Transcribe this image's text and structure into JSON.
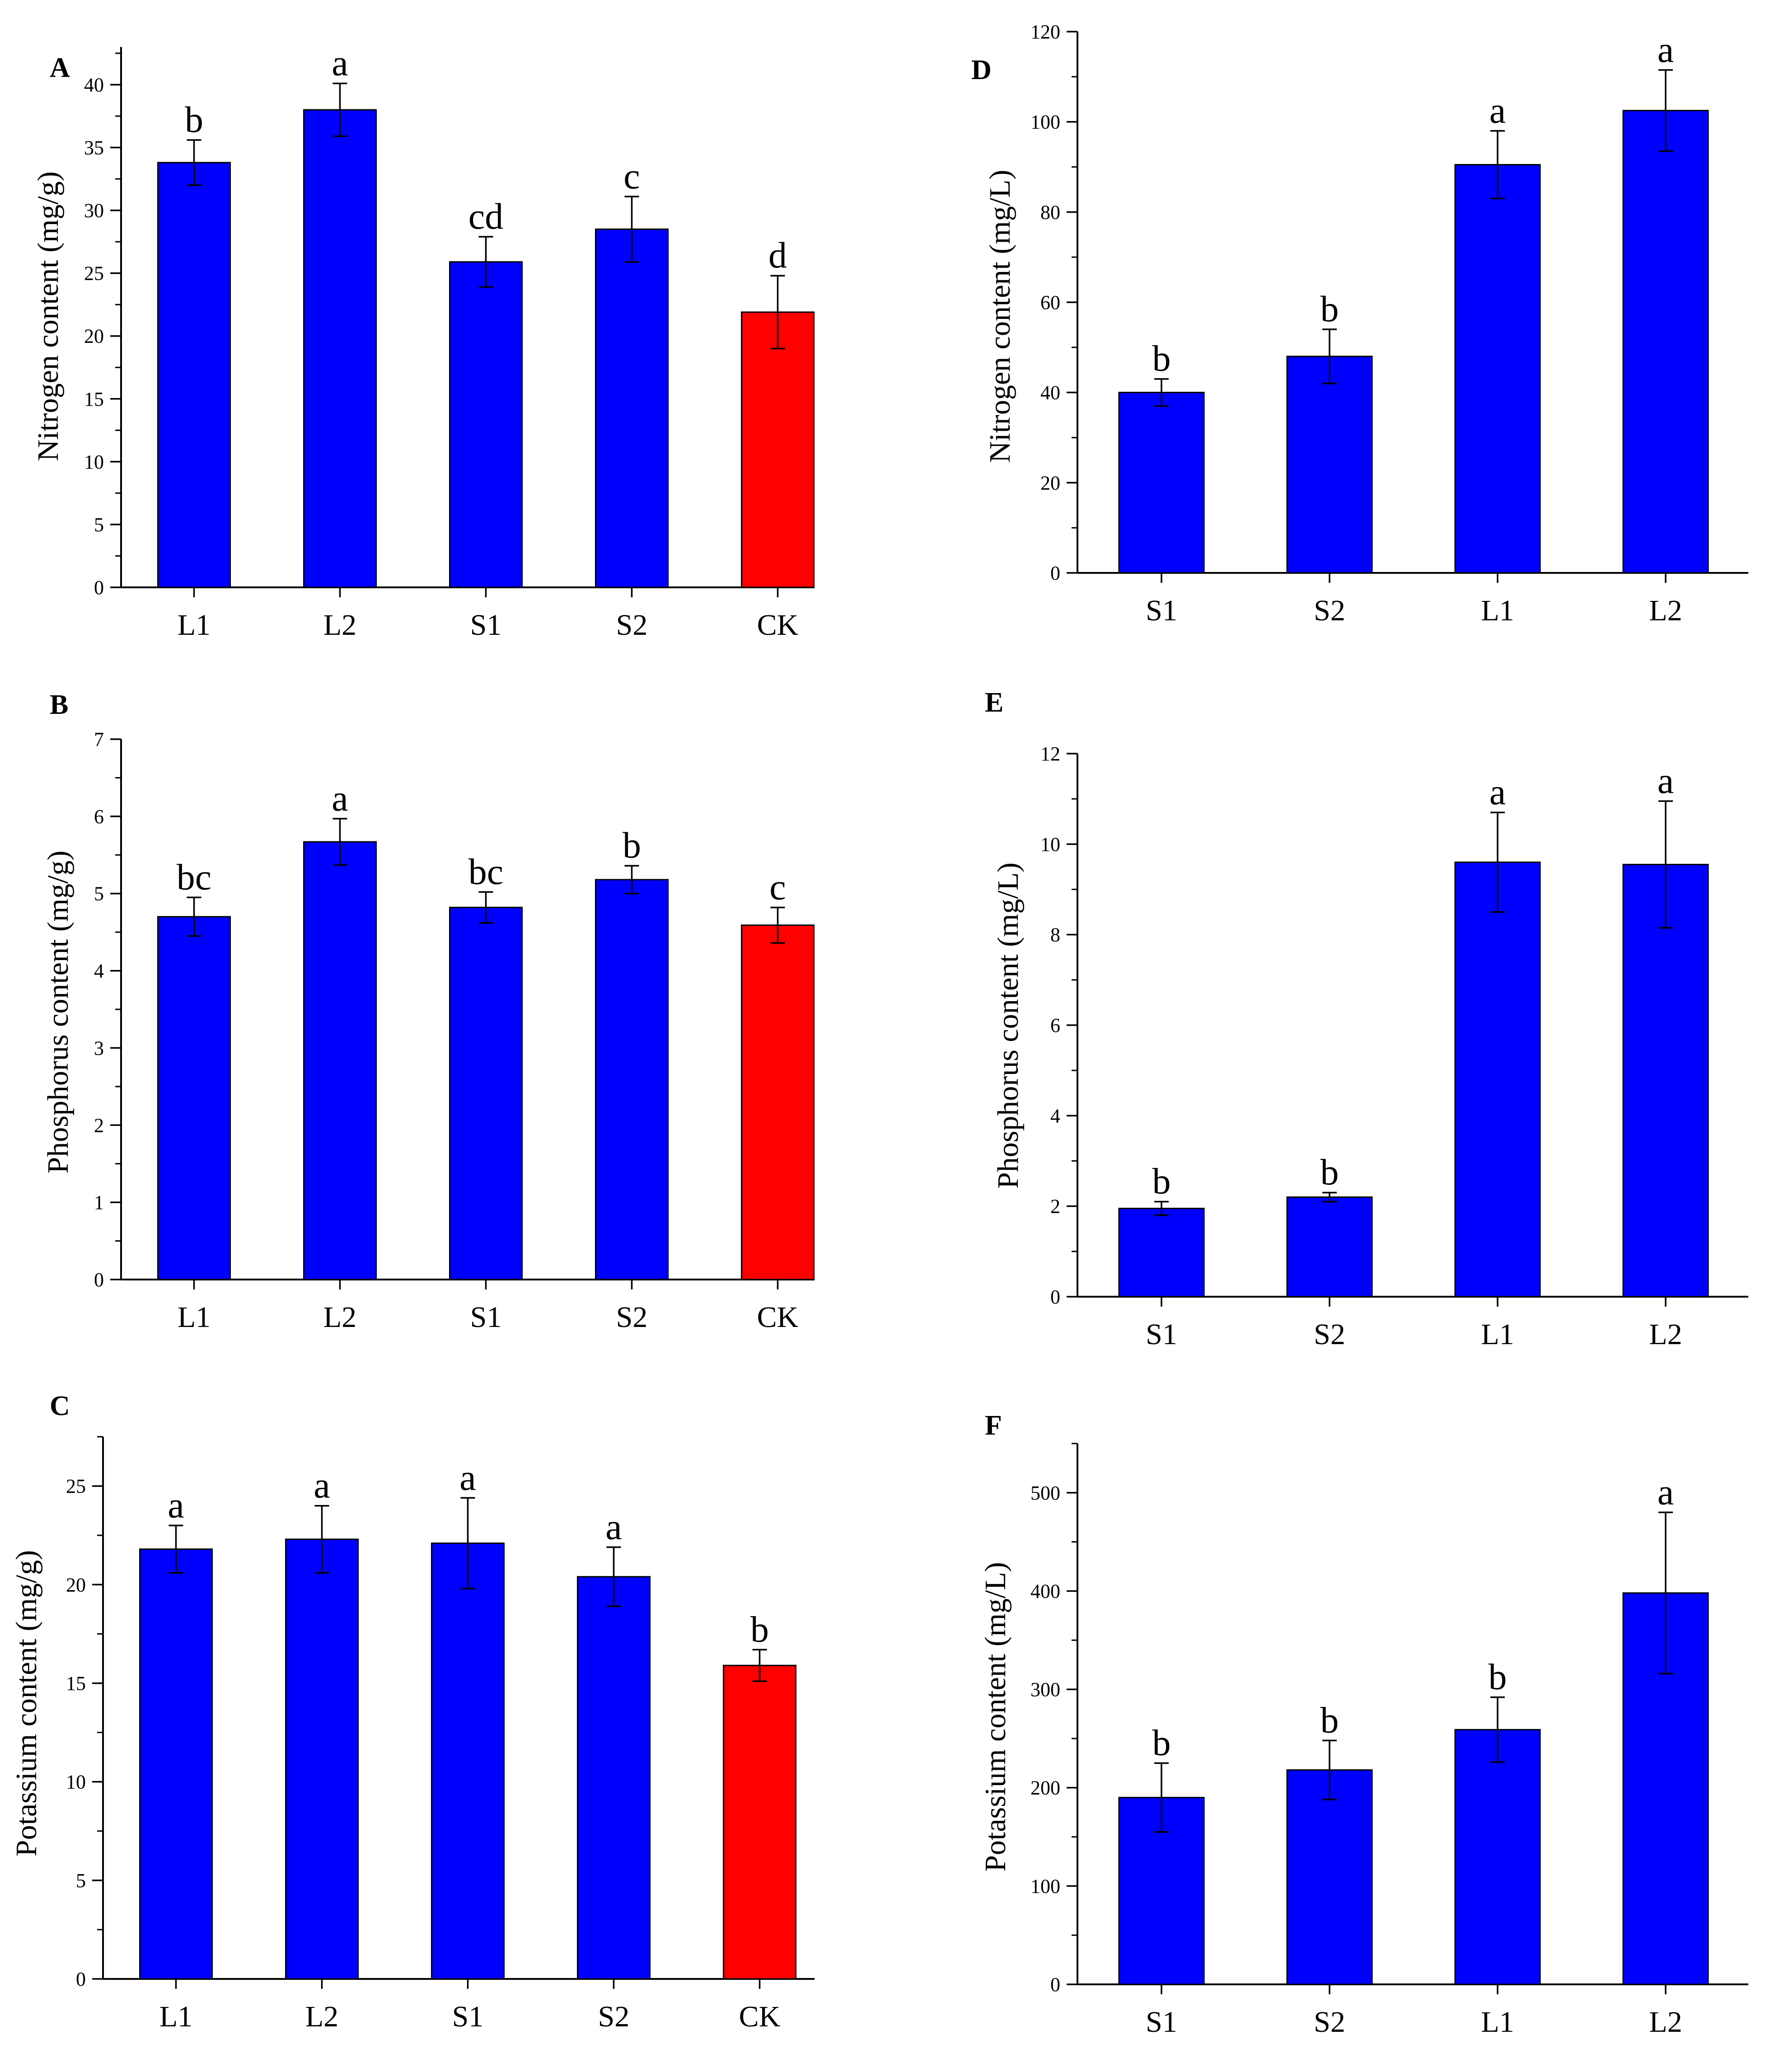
{
  "figure_title": "",
  "colors": {
    "treatment": "#0000FF",
    "control": "#FF0000",
    "axis": "#000000"
  },
  "chart_data": [
    {
      "panel": "A",
      "type": "bar",
      "ylabel": "Nitrogen content (mg/g)",
      "xlabel": "",
      "ylim": [
        0,
        43
      ],
      "yticks": [
        0,
        5,
        10,
        15,
        20,
        25,
        30,
        35,
        40
      ],
      "minor": 2.5,
      "categories": [
        "L1",
        "L2",
        "S1",
        "S2",
        "CK"
      ],
      "values": [
        33.8,
        38.0,
        25.9,
        28.5,
        21.9
      ],
      "errors": [
        1.8,
        2.1,
        2.0,
        2.6,
        2.9
      ],
      "letters": [
        "b",
        "a",
        "cd",
        "c",
        "d"
      ],
      "bar_colors": [
        "#0000FF",
        "#0000FF",
        "#0000FF",
        "#0000FF",
        "#FF0000"
      ]
    },
    {
      "panel": "B",
      "type": "bar",
      "ylabel": "Phosphorus content (mg/g)",
      "xlabel": "",
      "ylim": [
        0,
        7
      ],
      "yticks": [
        0,
        1,
        2,
        3,
        4,
        5,
        6,
        7
      ],
      "minor": 0.5,
      "categories": [
        "L1",
        "L2",
        "S1",
        "S2",
        "CK"
      ],
      "values": [
        4.7,
        5.67,
        4.82,
        5.18,
        4.59
      ],
      "errors": [
        0.25,
        0.3,
        0.2,
        0.18,
        0.23
      ],
      "letters": [
        "bc",
        "a",
        "bc",
        "b",
        "c"
      ],
      "bar_colors": [
        "#0000FF",
        "#0000FF",
        "#0000FF",
        "#0000FF",
        "#FF0000"
      ]
    },
    {
      "panel": "C",
      "type": "bar",
      "ylabel": "Potassium content (mg/g)",
      "xlabel": "",
      "ylim": [
        0,
        27.5
      ],
      "yticks": [
        0,
        5,
        10,
        15,
        20,
        25
      ],
      "minor": 2.5,
      "categories": [
        "L1",
        "L2",
        "S1",
        "S2",
        "CK"
      ],
      "values": [
        21.8,
        22.3,
        22.1,
        20.4,
        15.9
      ],
      "errors": [
        1.2,
        1.7,
        2.3,
        1.5,
        0.8
      ],
      "letters": [
        "a",
        "a",
        "a",
        "a",
        "b"
      ],
      "bar_colors": [
        "#0000FF",
        "#0000FF",
        "#0000FF",
        "#0000FF",
        "#FF0000"
      ]
    },
    {
      "panel": "D",
      "type": "bar",
      "ylabel": "Nitrogen content (mg/L)",
      "xlabel": "",
      "ylim": [
        0,
        120
      ],
      "yticks": [
        0,
        20,
        40,
        60,
        80,
        100,
        120
      ],
      "minor": 10,
      "categories": [
        "S1",
        "S2",
        "L1",
        "L2"
      ],
      "values": [
        40.0,
        48.0,
        90.5,
        102.5
      ],
      "errors": [
        3.0,
        6.0,
        7.5,
        9.0
      ],
      "letters": [
        "b",
        "b",
        "a",
        "a"
      ],
      "bar_colors": [
        "#0000FF",
        "#0000FF",
        "#0000FF",
        "#0000FF"
      ]
    },
    {
      "panel": "E",
      "type": "bar",
      "ylabel": "Phosphorus content (mg/L)",
      "xlabel": "",
      "ylim": [
        0,
        12
      ],
      "yticks": [
        0,
        2,
        4,
        6,
        8,
        10,
        12
      ],
      "minor": 1,
      "categories": [
        "S1",
        "S2",
        "L1",
        "L2"
      ],
      "values": [
        1.95,
        2.2,
        9.6,
        9.55
      ],
      "errors": [
        0.15,
        0.1,
        1.1,
        1.4
      ],
      "letters": [
        "b",
        "b",
        "a",
        "a"
      ],
      "bar_colors": [
        "#0000FF",
        "#0000FF",
        "#0000FF",
        "#0000FF"
      ]
    },
    {
      "panel": "F",
      "type": "bar",
      "ylabel": "Potassium content (mg/L)",
      "xlabel": "",
      "ylim": [
        0,
        550
      ],
      "yticks": [
        0,
        100,
        200,
        300,
        400,
        500
      ],
      "minor": 50,
      "categories": [
        "S1",
        "S2",
        "L1",
        "L2"
      ],
      "values": [
        190,
        218,
        259,
        398
      ],
      "errors": [
        35,
        30,
        33,
        82
      ],
      "letters": [
        "b",
        "b",
        "b",
        "a"
      ],
      "bar_colors": [
        "#0000FF",
        "#0000FF",
        "#0000FF",
        "#0000FF"
      ]
    }
  ]
}
